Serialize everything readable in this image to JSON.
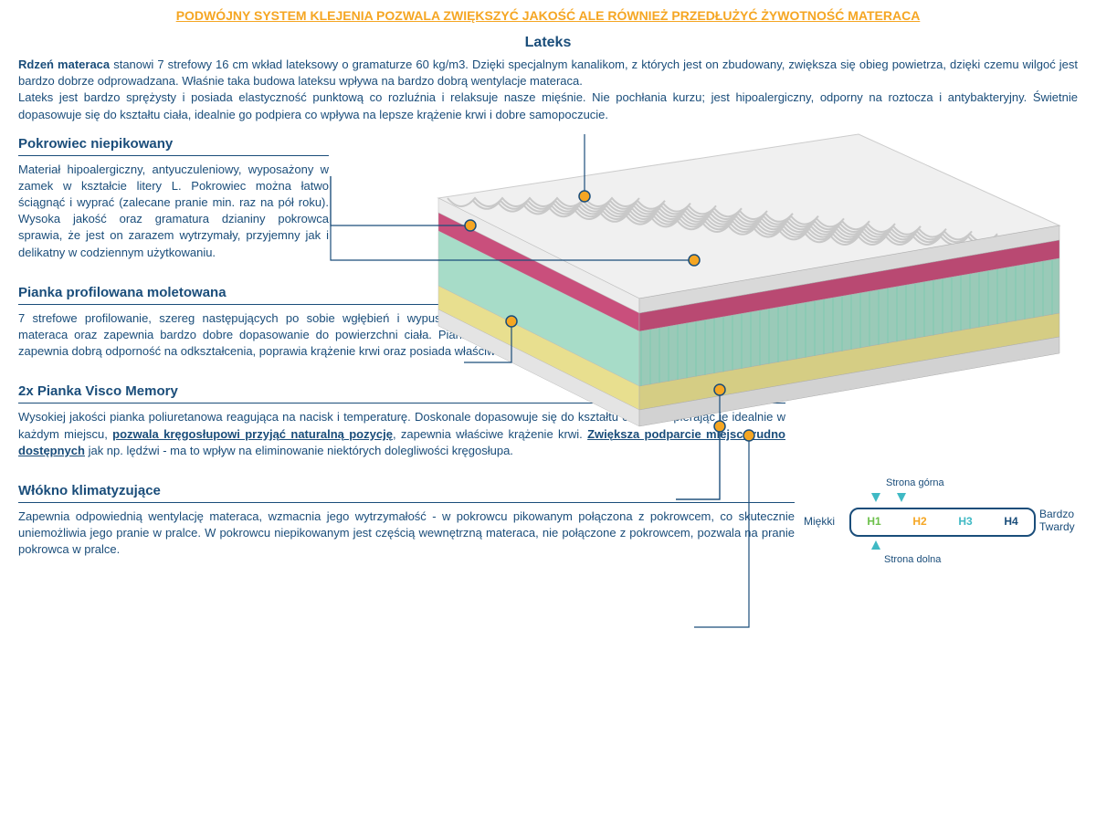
{
  "header": {
    "title": "PODWÓJNY SYSTEM KLEJENIA POZWALA ZWIĘKSZYĆ JAKOŚĆ ALE RÓWNIEŻ PRZEDŁUŻYĆ ŻYWOTNOŚĆ MATERACA",
    "subtitle": "Lateks",
    "intro_html": "<b>Rdzeń materaca</b> stanowi 7 strefowy 16 cm wkład lateksowy o gramaturze 60 kg/m3. Dzięki specjalnym kanalikom, z których jest on zbudowany, zwiększa się obieg powietrza, dzięki czemu wilgoć jest bardzo dobrze odprowadzana. Właśnie taka budowa lateksu wpływa na bardzo dobrą wentylacje materaca.<br>Lateks jest bardzo sprężysty i posiada elastyczność punktową co rozluźnia i relaksuje nasze mięśnie. Nie pochłania kurzu; jest hipoalergiczny, odporny na roztocza i antybakteryjny. Świetnie dopasowuje się do kształtu ciała, idealnie go podpiera co wpływa na lepsze krążenie krwi i dobre samopoczucie."
  },
  "sections": {
    "pokrowiec": {
      "title": "Pokrowiec  niepikowany",
      "body_html": "Materiał hipoalergiczny, antyuczuleniowy, wyposażony w zamek w kształcie litery L. Pokrowiec można łatwo ściągnąć i wyprać (zalecane pranie min.  raz na pół roku). Wysoka jakość oraz gramatura dzianiny pokrowca sprawia, że jest on zarazem wytrzymały, przyjemny jak i delikatny w codziennym użytkowaniu."
    },
    "pianka_prof": {
      "title": "Pianka profilowana moletowana",
      "body_html": "7 strefowe profilowanie, szereg następujących po sobie wgłębień i wypustek poprawia wentylację materaca oraz zapewnia bardzo dobre dopasowanie do powierzchni ciała. Pianka o dużej gęstości, zapewnia dobrą odporność na odkształcenia, poprawia krążenie krwi oraz posiada właściwości masujące."
    },
    "visco": {
      "title": "2x Pianka Visco Memory",
      "body_html": "Wysokiej jakości pianka poliuretanowa reagująca na nacisk i temperaturę. Doskonale dopasowuje się do kształtu ciała, podpierając je idealnie w każdym miejscu, <span class='hl'>pozwala kręgosłupowi przyjąć naturalną pozycję</span>, zapewnia właściwe krążenie krwi. <span class='hl'>Zwiększa podparcie miejsc trudno dostępnych</span> jak np. lędźwi - ma to wpływ na eliminowanie niektórych dolegliwości kręgosłupa."
    },
    "wlokno": {
      "title": "Włókno klimatyzujące",
      "body_html": "Zapewnia odpowiednią wentylację materaca, wzmacnia jego wytrzymałość - w pokrowcu pikowanym połączona z pokrowcem, co skutecznie uniemożliwia jego pranie w pralce. W pokrowcu niepikowanym jest częścią wewnętrzną materaca, nie połączone z pokrowcem, pozwala na pranie pokrowca w pralce."
    }
  },
  "mattress": {
    "layers": [
      {
        "name": "cover-top",
        "color": "#e8e8e8",
        "pattern": "wave"
      },
      {
        "name": "visco-top",
        "color": "#c94f7c"
      },
      {
        "name": "profiled-foam",
        "color": "#a7dcc8"
      },
      {
        "name": "visco-bottom",
        "color": "#e8df8f"
      },
      {
        "name": "cover-bottom",
        "color": "#dedede"
      }
    ],
    "callout_dot_fill": "#f5a623",
    "callout_dot_stroke": "#1a4d7a",
    "callout_line_color": "#1a4d7a"
  },
  "hardness": {
    "top_label": "Strona górna",
    "bottom_label": "Strona dolna",
    "left_label": "Miękki",
    "right_label_l1": "Bardzo",
    "right_label_l2": "Twardy",
    "levels": [
      {
        "label": "H1",
        "color": "#6cc04a"
      },
      {
        "label": "H2",
        "color": "#f5a623"
      },
      {
        "label": "H3",
        "color": "#3fb9c4"
      },
      {
        "label": "H4",
        "color": "#1a4d7a"
      }
    ],
    "arrow_top_color": "#3fb9c4",
    "arrow_bottom_color": "#3fb9c4"
  }
}
